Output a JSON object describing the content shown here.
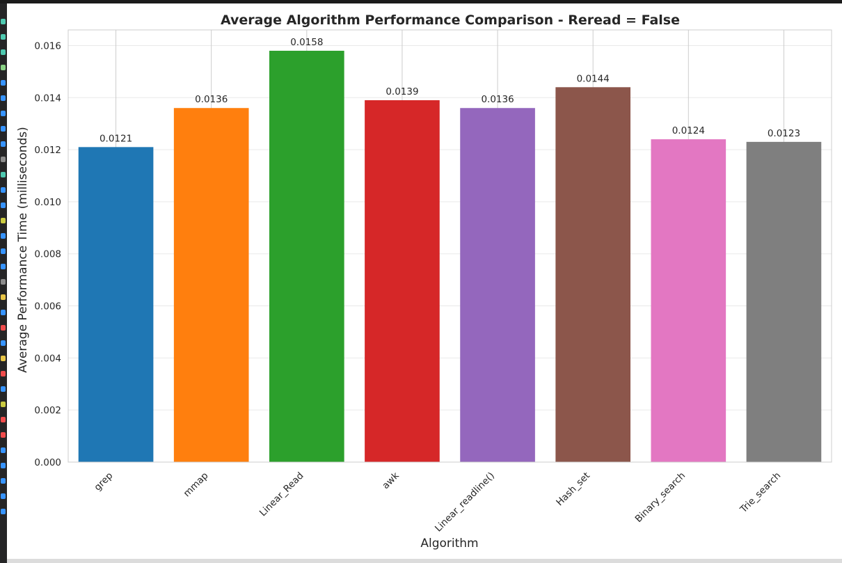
{
  "sidebar": {
    "icons": [
      {
        "name": "file-icon",
        "color": "#4ec9b0"
      },
      {
        "name": "file-icon",
        "color": "#4ec9b0"
      },
      {
        "name": "file-icon",
        "color": "#4ec9b0"
      },
      {
        "name": "arrow-icon",
        "color": "#89d185"
      },
      {
        "name": "folder-icon",
        "color": "#3794ff"
      },
      {
        "name": "python-icon",
        "color": "#3794ff"
      },
      {
        "name": "python-icon",
        "color": "#3794ff"
      },
      {
        "name": "python-icon",
        "color": "#3794ff"
      },
      {
        "name": "python-icon",
        "color": "#3794ff"
      },
      {
        "name": "text-file-icon",
        "color": "#8c8c8c"
      },
      {
        "name": "file-icon",
        "color": "#4ec9b0"
      },
      {
        "name": "folder-icon",
        "color": "#3794ff"
      },
      {
        "name": "python-icon",
        "color": "#3794ff"
      },
      {
        "name": "json-icon",
        "color": "#cbcb41"
      },
      {
        "name": "python-icon",
        "color": "#3794ff"
      },
      {
        "name": "python-icon",
        "color": "#3794ff"
      },
      {
        "name": "python-icon",
        "color": "#3794ff"
      },
      {
        "name": "text-file-icon",
        "color": "#8c8c8c"
      },
      {
        "name": "python-icon",
        "color": "#e8c547"
      },
      {
        "name": "gear-icon",
        "color": "#3794ff"
      },
      {
        "name": "lock-icon",
        "color": "#f14c4c"
      },
      {
        "name": "info-icon",
        "color": "#3794ff"
      },
      {
        "name": "python-icon",
        "color": "#e8c547"
      },
      {
        "name": "lock-icon",
        "color": "#f14c4c"
      },
      {
        "name": "gear-icon",
        "color": "#3794ff"
      },
      {
        "name": "config-icon",
        "color": "#cbcb41"
      },
      {
        "name": "lock-icon",
        "color": "#f14c4c"
      },
      {
        "name": "window-icon",
        "color": "#f14c4c"
      },
      {
        "name": "file-icon",
        "color": "#3794ff"
      },
      {
        "name": "file-icon",
        "color": "#3794ff"
      },
      {
        "name": "file-icon",
        "color": "#3794ff"
      },
      {
        "name": "file-icon",
        "color": "#3794ff"
      },
      {
        "name": "file-icon",
        "color": "#3794ff"
      }
    ]
  },
  "chart_data": {
    "type": "bar",
    "title": "Average Algorithm Performance Comparison - Reread = False",
    "xlabel": "Algorithm",
    "ylabel": "Average Performance Time (milliseconds)",
    "categories": [
      "grep",
      "mmap",
      "Linear_Read",
      "awk",
      "Linear_readline()",
      "Hash_set",
      "Binary_search",
      "Trie_search"
    ],
    "values": [
      0.0121,
      0.0136,
      0.0158,
      0.0139,
      0.0136,
      0.0144,
      0.0124,
      0.0123
    ],
    "value_labels": [
      "0.0121",
      "0.0136",
      "0.0158",
      "0.0139",
      "0.0136",
      "0.0144",
      "0.0124",
      "0.0123"
    ],
    "colors": [
      "#1f77b4",
      "#ff7f0e",
      "#2ca02c",
      "#d62728",
      "#9467bd",
      "#8c564b",
      "#e377c2",
      "#7f7f7f"
    ],
    "ylim": [
      0,
      0.0166
    ],
    "yticks": [
      "0.000",
      "0.002",
      "0.004",
      "0.006",
      "0.008",
      "0.010",
      "0.012",
      "0.014",
      "0.016"
    ],
    "grid": true,
    "legend": "none"
  }
}
